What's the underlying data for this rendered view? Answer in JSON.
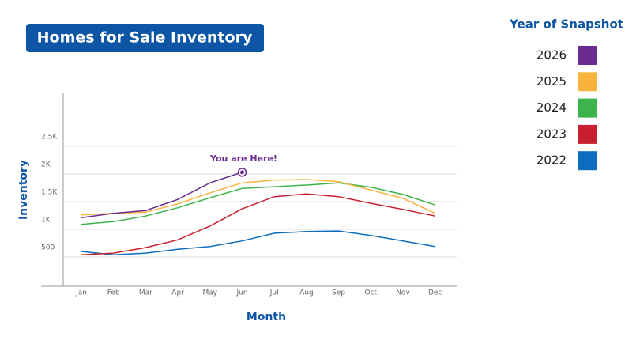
{
  "chart_data": {
    "type": "line",
    "title": "Homes for Sale Inventory",
    "x_label": "Month",
    "y_label": "Inventory",
    "legend_title": "Year of Snapshot",
    "legend": "right",
    "annotation": "You are Here!",
    "categories": [
      "Jan",
      "Feb",
      "Mar",
      "Apr",
      "May",
      "Jun",
      "Jul",
      "Aug",
      "Sep",
      "Oct",
      "Nov",
      "Dec"
    ],
    "ylim": [
      0,
      3500
    ],
    "yticks": [
      500,
      {
        "value": 1000,
        "label": "1K"
      },
      {
        "value": 1500,
        "label": "1.5K"
      },
      {
        "value": 2000,
        "label": "2K"
      },
      {
        "value": 2500,
        "label": "2.5K"
      }
    ],
    "grid": true,
    "series": [
      {
        "name": "2026",
        "color": "#6a2c91",
        "values": [
          1210,
          1290,
          1340,
          1540,
          1840,
          2030,
          null,
          null,
          null,
          null,
          null,
          null
        ]
      },
      {
        "name": "2025",
        "color": "#f7b33b",
        "values": [
          1260,
          1290,
          1310,
          1460,
          1660,
          1840,
          1890,
          1900,
          1860,
          1710,
          1560,
          1290
        ]
      },
      {
        "name": "2024",
        "color": "#3cb44b",
        "values": [
          1090,
          1140,
          1240,
          1390,
          1570,
          1740,
          1770,
          1800,
          1840,
          1760,
          1630,
          1440
        ]
      },
      {
        "name": "2023",
        "color": "#c8202f",
        "values": [
          540,
          570,
          670,
          810,
          1060,
          1370,
          1590,
          1640,
          1590,
          1470,
          1360,
          1240
        ]
      },
      {
        "name": "2022",
        "color": "#0d6ebf",
        "values": [
          600,
          540,
          570,
          640,
          690,
          790,
          930,
          960,
          970,
          890,
          790,
          690
        ]
      }
    ]
  }
}
